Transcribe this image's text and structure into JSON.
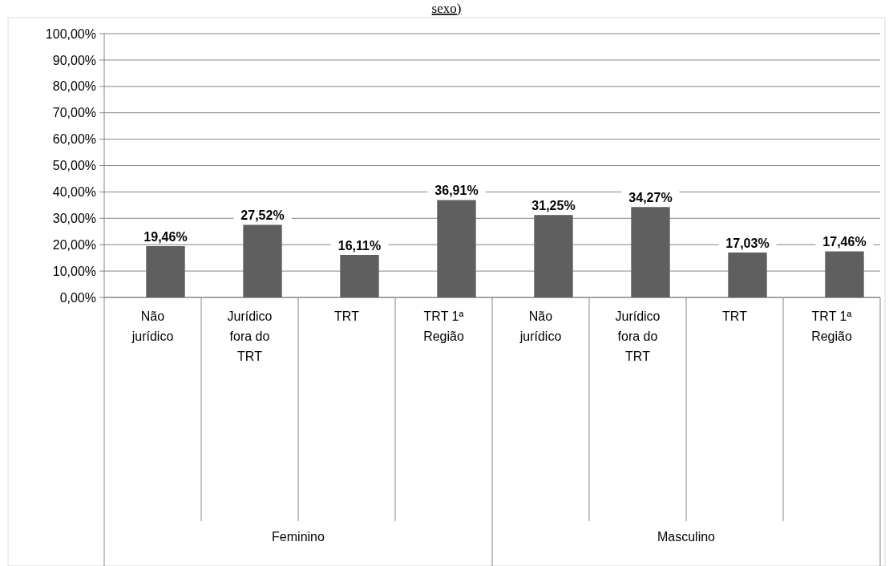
{
  "chart_data": {
    "type": "bar",
    "title": "sexo)",
    "categories": [
      "Não jurídico",
      "Jurídico fora do TRT",
      "TRT",
      "TRT 1ª Região",
      "Não jurídico",
      "Jurídico fora do TRT",
      "TRT",
      "TRT 1ª Região"
    ],
    "values": [
      19.46,
      27.52,
      16.11,
      36.91,
      31.25,
      34.27,
      17.03,
      17.46
    ],
    "color": "#5f5f5f",
    "value_labels": [
      "19,46%",
      "27,52%",
      "16,11%",
      "36,91%",
      "31,25%",
      "34,27%",
      "17,03%",
      "17,46%"
    ],
    "annotations": [
      "Feminino",
      "Masculino"
    ],
    "ylim": [
      0,
      100
    ],
    "yticks": [
      {
        "value": 0,
        "label": "0,00%"
      },
      {
        "value": 10,
        "label": "10,00%"
      },
      {
        "value": 20,
        "label": "20,00%"
      },
      {
        "value": 30,
        "label": "30,00%"
      },
      {
        "value": 40,
        "label": "40,00%"
      },
      {
        "value": 50,
        "label": "50,00%"
      },
      {
        "value": 60,
        "label": "60,00%"
      },
      {
        "value": 70,
        "label": "70,00%"
      },
      {
        "value": 80,
        "label": "80,00%"
      },
      {
        "value": 90,
        "label": "90,00%"
      },
      {
        "value": 100,
        "label": "100,00%"
      }
    ],
    "grid": "y"
  }
}
